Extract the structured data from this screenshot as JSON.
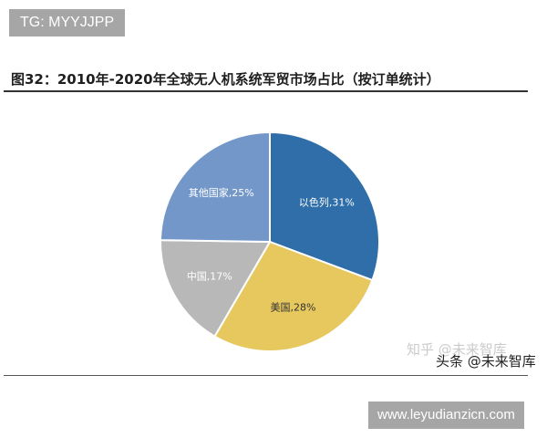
{
  "badge": "TG: MYYJJPP",
  "figure_title": "图32：2010年-2020年全球无人机系统军贸市场占比（按订单统计）",
  "watermarks": {
    "zhihu": "知乎 @未来智库",
    "toutiao": "头条 @未来智库",
    "site": "www.leyudianzicn.com"
  },
  "chart_data": {
    "type": "pie",
    "title": "",
    "slices": [
      {
        "label": "以色列",
        "value": 31,
        "display": "以色列,31%",
        "color": "#2f6ea8"
      },
      {
        "label": "美国",
        "value": 28,
        "display": "美国,28%",
        "color": "#e6c85f"
      },
      {
        "label": "中国",
        "value": 17,
        "display": "中国,17%",
        "color": "#b8b8b8"
      },
      {
        "label": "其他国家",
        "value": 25,
        "display": "其他国家,25%",
        "color": "#7297c8"
      }
    ],
    "start_angle_deg": 0,
    "direction": "clockwise",
    "legend": "none",
    "labels": "inside"
  }
}
